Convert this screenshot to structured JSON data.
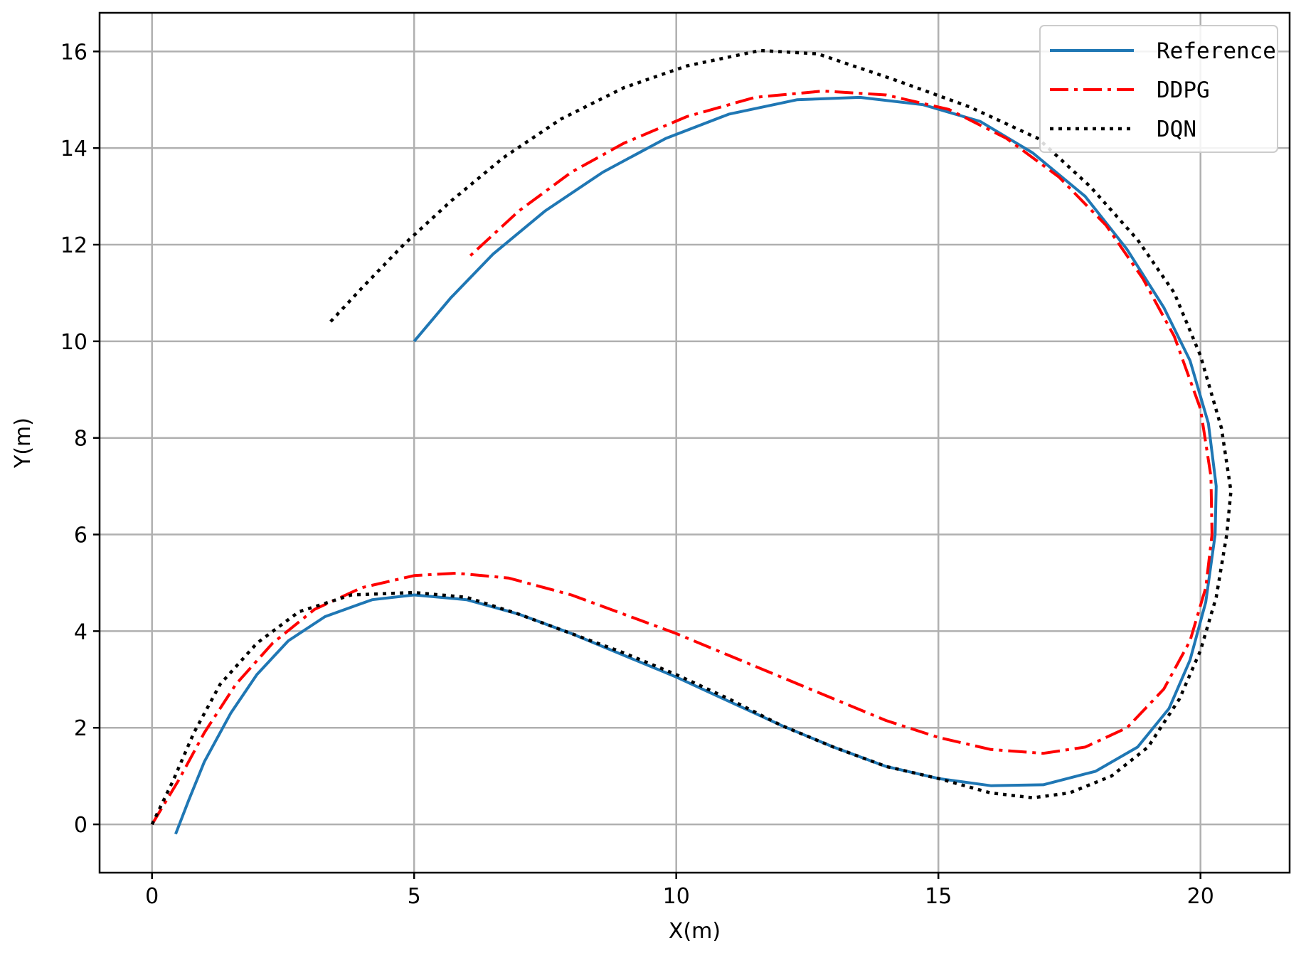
{
  "chart_data": {
    "type": "line",
    "title": "",
    "xlabel": "X(m)",
    "ylabel": "Y(m)",
    "xlim": [
      -1.0,
      21.7
    ],
    "ylim": [
      -1.0,
      16.8
    ],
    "xticks": [
      0,
      5,
      10,
      15,
      20
    ],
    "yticks": [
      0,
      2,
      4,
      6,
      8,
      10,
      12,
      14,
      16
    ],
    "grid": true,
    "legend_position": "top-right",
    "series": [
      {
        "name": "Reference",
        "color": "#1f77b4",
        "style": "solid",
        "points": [
          [
            0.45,
            -0.2
          ],
          [
            0.7,
            0.5
          ],
          [
            1.0,
            1.3
          ],
          [
            1.5,
            2.3
          ],
          [
            2.0,
            3.1
          ],
          [
            2.6,
            3.8
          ],
          [
            3.3,
            4.3
          ],
          [
            4.2,
            4.65
          ],
          [
            5.0,
            4.75
          ],
          [
            6.0,
            4.65
          ],
          [
            7.0,
            4.35
          ],
          [
            8.0,
            3.95
          ],
          [
            9.0,
            3.5
          ],
          [
            10.0,
            3.05
          ],
          [
            11.0,
            2.55
          ],
          [
            12.0,
            2.05
          ],
          [
            13.0,
            1.6
          ],
          [
            14.0,
            1.2
          ],
          [
            15.0,
            0.95
          ],
          [
            16.0,
            0.8
          ],
          [
            17.0,
            0.82
          ],
          [
            18.0,
            1.1
          ],
          [
            18.8,
            1.6
          ],
          [
            19.4,
            2.4
          ],
          [
            19.8,
            3.4
          ],
          [
            20.1,
            4.6
          ],
          [
            20.28,
            6.0
          ],
          [
            20.3,
            7.0
          ],
          [
            20.15,
            8.3
          ],
          [
            19.8,
            9.6
          ],
          [
            19.3,
            10.7
          ],
          [
            18.6,
            11.9
          ],
          [
            17.8,
            13.0
          ],
          [
            16.8,
            13.9
          ],
          [
            15.8,
            14.55
          ],
          [
            14.7,
            14.9
          ],
          [
            13.5,
            15.05
          ],
          [
            12.3,
            15.0
          ],
          [
            11.0,
            14.7
          ],
          [
            9.8,
            14.2
          ],
          [
            8.6,
            13.5
          ],
          [
            7.5,
            12.7
          ],
          [
            6.5,
            11.8
          ],
          [
            5.7,
            10.9
          ],
          [
            5.0,
            10.0
          ]
        ]
      },
      {
        "name": "DDPG",
        "color": "#ff0000",
        "style": "dashdot",
        "points": [
          [
            0.0,
            0.0
          ],
          [
            0.5,
            0.9
          ],
          [
            1.0,
            1.9
          ],
          [
            1.6,
            2.9
          ],
          [
            2.3,
            3.75
          ],
          [
            3.1,
            4.45
          ],
          [
            4.0,
            4.9
          ],
          [
            5.0,
            5.15
          ],
          [
            5.8,
            5.2
          ],
          [
            6.8,
            5.1
          ],
          [
            8.0,
            4.75
          ],
          [
            9.0,
            4.35
          ],
          [
            10.0,
            3.95
          ],
          [
            11.0,
            3.5
          ],
          [
            12.0,
            3.05
          ],
          [
            13.0,
            2.6
          ],
          [
            14.0,
            2.15
          ],
          [
            15.0,
            1.8
          ],
          [
            16.0,
            1.55
          ],
          [
            17.0,
            1.47
          ],
          [
            17.8,
            1.6
          ],
          [
            18.6,
            2.0
          ],
          [
            19.3,
            2.8
          ],
          [
            19.8,
            3.8
          ],
          [
            20.1,
            4.9
          ],
          [
            20.22,
            6.0
          ],
          [
            20.2,
            7.2
          ],
          [
            20.0,
            8.6
          ],
          [
            19.5,
            10.1
          ],
          [
            18.9,
            11.3
          ],
          [
            18.2,
            12.4
          ],
          [
            17.3,
            13.4
          ],
          [
            16.3,
            14.2
          ],
          [
            15.2,
            14.8
          ],
          [
            14.0,
            15.1
          ],
          [
            12.8,
            15.18
          ],
          [
            11.5,
            15.05
          ],
          [
            10.2,
            14.65
          ],
          [
            9.0,
            14.1
          ],
          [
            8.0,
            13.5
          ],
          [
            7.0,
            12.7
          ],
          [
            6.0,
            11.7
          ]
        ]
      },
      {
        "name": "DQN",
        "color": "#000000",
        "style": "dotted",
        "points": [
          [
            0.0,
            0.0
          ],
          [
            0.4,
            0.9
          ],
          [
            0.8,
            1.9
          ],
          [
            1.3,
            2.9
          ],
          [
            2.0,
            3.75
          ],
          [
            2.8,
            4.4
          ],
          [
            3.8,
            4.75
          ],
          [
            5.0,
            4.8
          ],
          [
            6.0,
            4.7
          ],
          [
            7.0,
            4.35
          ],
          [
            8.0,
            3.95
          ],
          [
            9.0,
            3.55
          ],
          [
            10.0,
            3.1
          ],
          [
            11.0,
            2.6
          ],
          [
            12.0,
            2.05
          ],
          [
            13.0,
            1.6
          ],
          [
            14.0,
            1.2
          ],
          [
            15.0,
            0.95
          ],
          [
            16.0,
            0.65
          ],
          [
            16.8,
            0.55
          ],
          [
            17.5,
            0.65
          ],
          [
            18.3,
            1.0
          ],
          [
            19.0,
            1.6
          ],
          [
            19.6,
            2.6
          ],
          [
            20.0,
            3.6
          ],
          [
            20.3,
            4.7
          ],
          [
            20.5,
            6.0
          ],
          [
            20.58,
            6.9
          ],
          [
            20.4,
            8.2
          ],
          [
            20.0,
            9.7
          ],
          [
            19.5,
            11.0
          ],
          [
            18.8,
            12.1
          ],
          [
            17.9,
            13.2
          ],
          [
            16.9,
            14.2
          ],
          [
            15.6,
            14.85
          ],
          [
            14.2,
            15.4
          ],
          [
            12.7,
            15.95
          ],
          [
            11.6,
            16.02
          ],
          [
            10.2,
            15.7
          ],
          [
            9.0,
            15.25
          ],
          [
            7.8,
            14.6
          ],
          [
            6.7,
            13.8
          ],
          [
            5.7,
            12.9
          ],
          [
            4.8,
            12.0
          ],
          [
            4.0,
            11.1
          ],
          [
            3.4,
            10.4
          ]
        ]
      }
    ]
  }
}
